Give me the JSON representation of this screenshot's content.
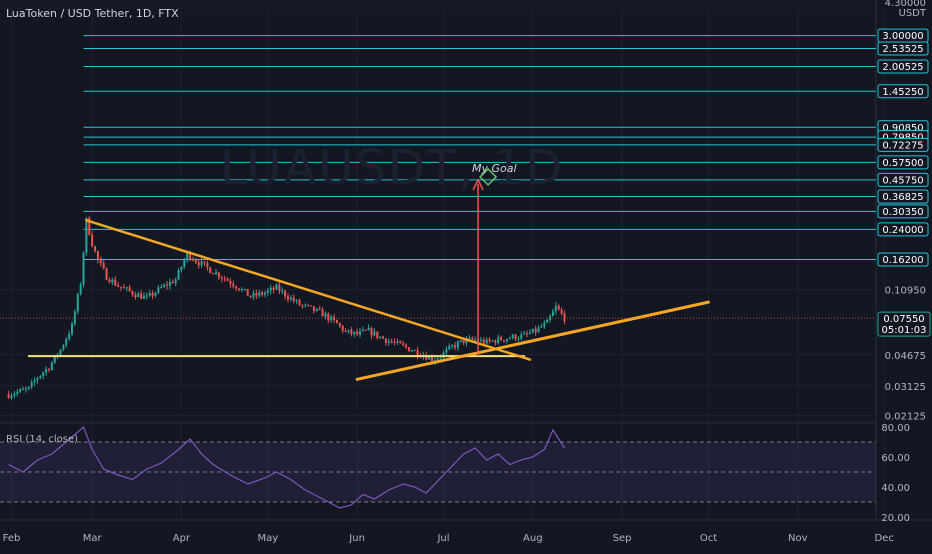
{
  "header": {
    "title": "LuaToken / USD Tether, 1D, FTX",
    "currency": "USDT",
    "watermark": "LUAUSDT, 1D"
  },
  "annotation": {
    "goal": "My Goal"
  },
  "rsi_label": "RSI (14, close)",
  "colors": {
    "background": "#131722",
    "up": "#26a69a",
    "down": "#ef5350",
    "level_line": "#26c6da",
    "trendline": "#f5a623",
    "support_line": "#f5e07a",
    "goal_arrow": "#ef5350",
    "rsi_line": "#7e57c2"
  },
  "chart_data": [
    {
      "type": "candlestick",
      "title": "LuaToken / USD Tether, 1D, FTX",
      "x_labels": [
        "Feb",
        "Mar",
        "Apr",
        "May",
        "Jun",
        "Jul",
        "Aug",
        "Sep",
        "Oct",
        "Nov",
        "Dec"
      ],
      "y_scale": "log",
      "y_tick_labels": [
        "4.30000",
        "0.10950",
        "0.04675",
        "0.03125",
        "0.02125"
      ],
      "current_price": "0.07550",
      "countdown": "05:01:03",
      "levels": [
        "3.00000",
        "2.53525",
        "2.00525",
        "1.45250",
        "0.90850",
        "0.79850",
        "0.72275",
        "0.57500",
        "0.45750",
        "0.36825",
        "0.30350",
        "0.24000",
        "0.16200"
      ],
      "goal": "0.45750",
      "series_points": [
        [
          "2022-01-31",
          0.028
        ],
        [
          "2022-02-07",
          0.03
        ],
        [
          "2022-02-10",
          0.035
        ],
        [
          "2022-02-14",
          0.04
        ],
        [
          "2022-02-18",
          0.05
        ],
        [
          "2022-02-22",
          0.068
        ],
        [
          "2022-02-25",
          0.12
        ],
        [
          "2022-02-27",
          0.27
        ],
        [
          "2022-03-01",
          0.2
        ],
        [
          "2022-03-03",
          0.16
        ],
        [
          "2022-03-06",
          0.13
        ],
        [
          "2022-03-10",
          0.115
        ],
        [
          "2022-03-15",
          0.105
        ],
        [
          "2022-03-20",
          0.098
        ],
        [
          "2022-03-25",
          0.112
        ],
        [
          "2022-03-30",
          0.125
        ],
        [
          "2022-04-03",
          0.175
        ],
        [
          "2022-04-06",
          0.16
        ],
        [
          "2022-04-10",
          0.145
        ],
        [
          "2022-04-15",
          0.13
        ],
        [
          "2022-04-20",
          0.115
        ],
        [
          "2022-04-25",
          0.1
        ],
        [
          "2022-04-30",
          0.105
        ],
        [
          "2022-05-04",
          0.112
        ],
        [
          "2022-05-08",
          0.1
        ],
        [
          "2022-05-12",
          0.09
        ],
        [
          "2022-05-16",
          0.085
        ],
        [
          "2022-05-20",
          0.08
        ],
        [
          "2022-05-25",
          0.07
        ],
        [
          "2022-05-28",
          0.063
        ],
        [
          "2022-06-01",
          0.061
        ],
        [
          "2022-06-05",
          0.064
        ],
        [
          "2022-06-08",
          0.06
        ],
        [
          "2022-06-12",
          0.056
        ],
        [
          "2022-06-16",
          0.053
        ],
        [
          "2022-06-20",
          0.05
        ],
        [
          "2022-06-24",
          0.047
        ],
        [
          "2022-06-27",
          0.044
        ],
        [
          "2022-06-30",
          0.046
        ],
        [
          "2022-07-04",
          0.052
        ],
        [
          "2022-07-08",
          0.056
        ],
        [
          "2022-07-12",
          0.057
        ],
        [
          "2022-07-16",
          0.055
        ],
        [
          "2022-07-20",
          0.057
        ],
        [
          "2022-07-25",
          0.059
        ],
        [
          "2022-07-29",
          0.06
        ],
        [
          "2022-08-02",
          0.064
        ],
        [
          "2022-08-06",
          0.071
        ],
        [
          "2022-08-09",
          0.087
        ],
        [
          "2022-08-12",
          0.0755
        ]
      ],
      "trendlines": {
        "down": {
          "from": [
            "2022-02-27",
            0.27
          ],
          "to": [
            "2022-07-31",
            0.044
          ]
        },
        "up": {
          "from": [
            "2022-06-01",
            0.034
          ],
          "to": [
            "2022-10-01",
            0.093
          ]
        },
        "support": {
          "from": [
            "2022-02-07",
            0.046
          ],
          "to": [
            "2022-07-29",
            0.046
          ]
        }
      }
    },
    {
      "type": "line",
      "title": "RSI (14, close)",
      "x_labels": [
        "Feb",
        "Mar",
        "Apr",
        "May",
        "Jun",
        "Jul",
        "Aug",
        "Sep",
        "Oct",
        "Nov",
        "Dec"
      ],
      "y_tick_labels": [
        "80.00",
        "60.00",
        "40.00",
        "20.00"
      ],
      "ylim": [
        18,
        82
      ],
      "bands": [
        30,
        50,
        70
      ],
      "values": [
        [
          "2022-01-31",
          55
        ],
        [
          "2022-02-05",
          50
        ],
        [
          "2022-02-10",
          58
        ],
        [
          "2022-02-15",
          62
        ],
        [
          "2022-02-20",
          70
        ],
        [
          "2022-02-26",
          80
        ],
        [
          "2022-03-01",
          65
        ],
        [
          "2022-03-05",
          52
        ],
        [
          "2022-03-10",
          48
        ],
        [
          "2022-03-15",
          45
        ],
        [
          "2022-03-20",
          52
        ],
        [
          "2022-03-25",
          56
        ],
        [
          "2022-03-31",
          65
        ],
        [
          "2022-04-04",
          72
        ],
        [
          "2022-04-08",
          62
        ],
        [
          "2022-04-12",
          55
        ],
        [
          "2022-04-18",
          48
        ],
        [
          "2022-04-24",
          42
        ],
        [
          "2022-04-30",
          46
        ],
        [
          "2022-05-04",
          50
        ],
        [
          "2022-05-09",
          45
        ],
        [
          "2022-05-14",
          38
        ],
        [
          "2022-05-18",
          34
        ],
        [
          "2022-05-22",
          30
        ],
        [
          "2022-05-26",
          26
        ],
        [
          "2022-05-30",
          28
        ],
        [
          "2022-06-03",
          35
        ],
        [
          "2022-06-07",
          32
        ],
        [
          "2022-06-12",
          38
        ],
        [
          "2022-06-17",
          42
        ],
        [
          "2022-06-21",
          40
        ],
        [
          "2022-06-25",
          36
        ],
        [
          "2022-06-29",
          44
        ],
        [
          "2022-07-03",
          52
        ],
        [
          "2022-07-08",
          62
        ],
        [
          "2022-07-12",
          66
        ],
        [
          "2022-07-16",
          58
        ],
        [
          "2022-07-20",
          62
        ],
        [
          "2022-07-24",
          55
        ],
        [
          "2022-07-28",
          58
        ],
        [
          "2022-08-01",
          60
        ],
        [
          "2022-08-05",
          65
        ],
        [
          "2022-08-08",
          78
        ],
        [
          "2022-08-12",
          66
        ]
      ]
    }
  ]
}
